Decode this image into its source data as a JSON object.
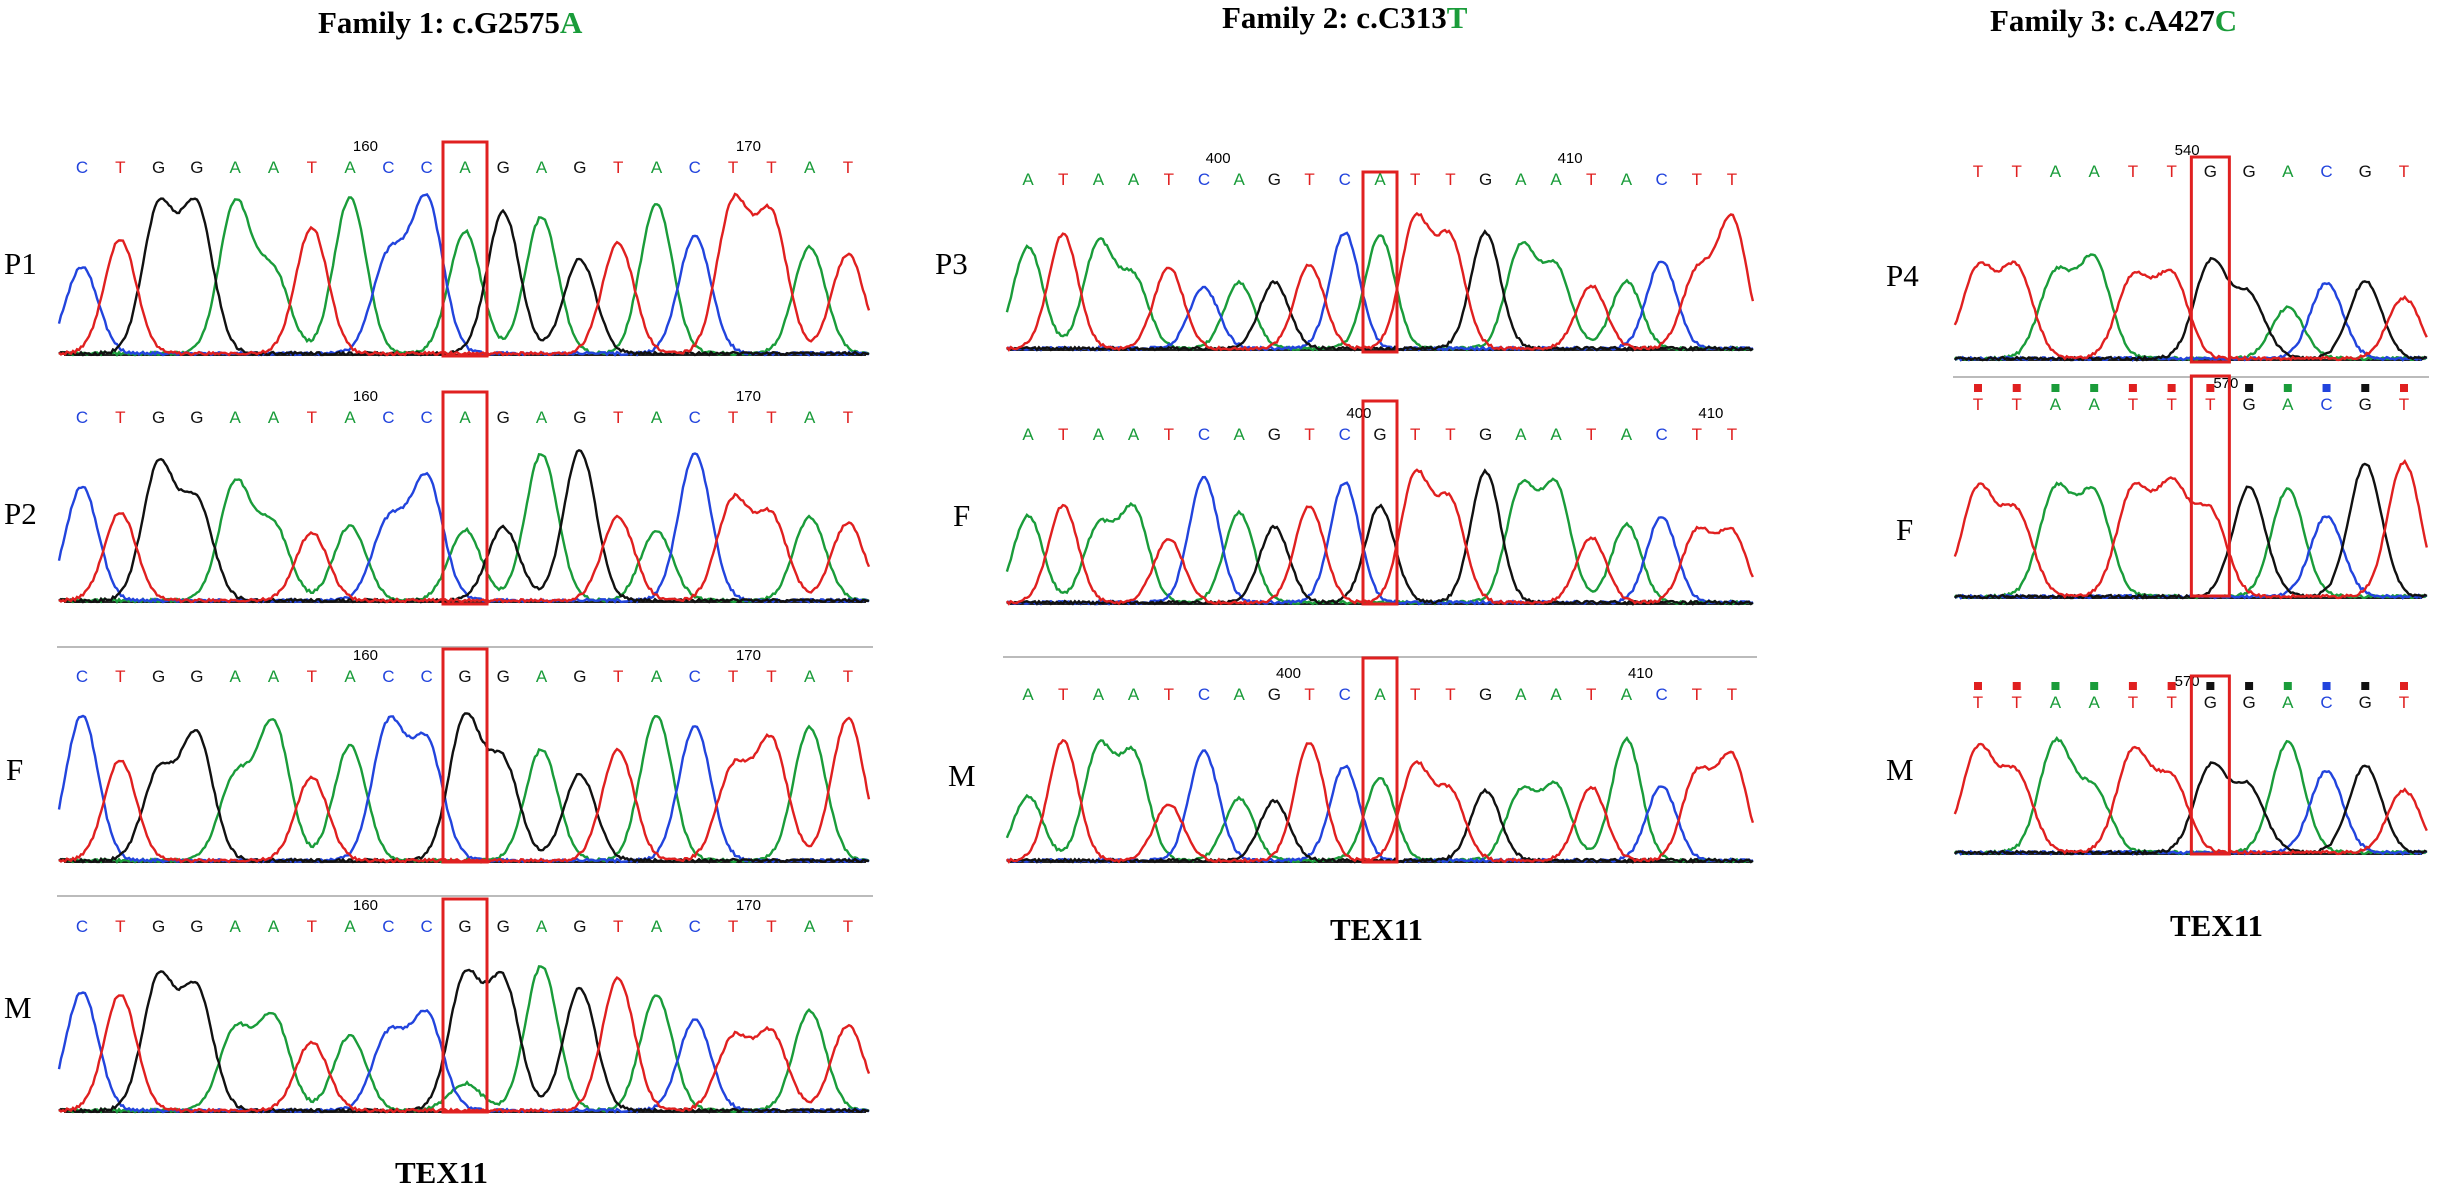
{
  "colors": {
    "A": "#1a9c3a",
    "C": "#2244dd",
    "G": "#111111",
    "T": "#e02020",
    "box": "#e02020",
    "alt_text": "#1a9c3a"
  },
  "families": [
    {
      "title_prefix": "Family 1: c.G2575",
      "title_alt": "A",
      "gene": "TEX11",
      "tracks": [
        {
          "label": "P1",
          "sequence": [
            "C",
            "T",
            "G",
            "G",
            "A",
            "A",
            "T",
            "A",
            "C",
            "C",
            "A",
            "G",
            "A",
            "G",
            "T",
            "A",
            "C",
            "T",
            "T",
            "A",
            "T"
          ],
          "positions": [
            {
              "index": 7,
              "text": "160"
            },
            {
              "index": 17,
              "text": "170"
            }
          ],
          "highlight": 10,
          "het_secondary": ""
        },
        {
          "label": "P2",
          "sequence": [
            "C",
            "T",
            "G",
            "G",
            "A",
            "A",
            "T",
            "A",
            "C",
            "C",
            "A",
            "G",
            "A",
            "G",
            "T",
            "A",
            "C",
            "T",
            "T",
            "A",
            "T"
          ],
          "positions": [
            {
              "index": 7,
              "text": "160"
            },
            {
              "index": 17,
              "text": "170"
            }
          ],
          "highlight": 10,
          "het_secondary": ""
        },
        {
          "label": "F",
          "sequence": [
            "C",
            "T",
            "G",
            "G",
            "A",
            "A",
            "T",
            "A",
            "C",
            "C",
            "G",
            "G",
            "A",
            "G",
            "T",
            "A",
            "C",
            "T",
            "T",
            "A",
            "T"
          ],
          "positions": [
            {
              "index": 7,
              "text": "160"
            },
            {
              "index": 17,
              "text": "170"
            }
          ],
          "highlight": 10,
          "het_secondary": ""
        },
        {
          "label": "M",
          "sequence": [
            "C",
            "T",
            "G",
            "G",
            "A",
            "A",
            "T",
            "A",
            "C",
            "C",
            "G",
            "G",
            "A",
            "G",
            "T",
            "A",
            "C",
            "T",
            "T",
            "A",
            "T"
          ],
          "positions": [
            {
              "index": 7,
              "text": "160"
            },
            {
              "index": 17,
              "text": "170"
            }
          ],
          "highlight": 10,
          "het_secondary": "A"
        }
      ]
    },
    {
      "title_prefix": "Family 2: c.C313",
      "title_alt": "T",
      "gene": "TEX11",
      "tracks": [
        {
          "label": "P3",
          "sequence": [
            "A",
            "T",
            "A",
            "A",
            "T",
            "C",
            "A",
            "G",
            "T",
            "C",
            "A",
            "T",
            "T",
            "G",
            "A",
            "A",
            "T",
            "A",
            "C",
            "T",
            "T"
          ],
          "positions": [
            {
              "index": 5,
              "text": "400"
            },
            {
              "index": 15,
              "text": "410"
            }
          ],
          "highlight": 10,
          "het_secondary": ""
        },
        {
          "label": "F",
          "sequence": [
            "A",
            "T",
            "A",
            "A",
            "T",
            "C",
            "A",
            "G",
            "T",
            "C",
            "G",
            "T",
            "T",
            "G",
            "A",
            "A",
            "T",
            "A",
            "C",
            "T",
            "T"
          ],
          "positions": [
            {
              "index": 9,
              "text": "400"
            },
            {
              "index": 19,
              "text": "410"
            }
          ],
          "highlight": 10,
          "het_secondary": ""
        },
        {
          "label": "M",
          "sequence": [
            "A",
            "T",
            "A",
            "A",
            "T",
            "C",
            "A",
            "G",
            "T",
            "C",
            "A",
            "T",
            "T",
            "G",
            "A",
            "A",
            "T",
            "A",
            "C",
            "T",
            "T"
          ],
          "positions": [
            {
              "index": 7,
              "text": "400"
            },
            {
              "index": 17,
              "text": "410"
            }
          ],
          "highlight": 10,
          "het_secondary": ""
        }
      ]
    },
    {
      "title_prefix": "Family 3: c.A427",
      "title_alt": "C",
      "gene": "TEX11",
      "tracks": [
        {
          "label": "P4",
          "sequence": [
            "T",
            "T",
            "A",
            "A",
            "T",
            "T",
            "G",
            "G",
            "A",
            "C",
            "G",
            "T"
          ],
          "positions": [
            {
              "index": 5,
              "text": "540"
            }
          ],
          "highlight": 6,
          "het_secondary": ""
        },
        {
          "label": "F",
          "sequence": [
            "T",
            "T",
            "A",
            "A",
            "T",
            "T",
            "T",
            "G",
            "A",
            "C",
            "G",
            "T"
          ],
          "positions": [
            {
              "index": 6,
              "text": "570"
            }
          ],
          "highlight": 6,
          "het_secondary": ""
        },
        {
          "label": "M",
          "sequence": [
            "T",
            "T",
            "A",
            "A",
            "T",
            "T",
            "G",
            "G",
            "A",
            "C",
            "G",
            "T"
          ],
          "positions": [
            {
              "index": 5,
              "text": "570"
            }
          ],
          "highlight": 6,
          "het_secondary": ""
        }
      ]
    }
  ]
}
